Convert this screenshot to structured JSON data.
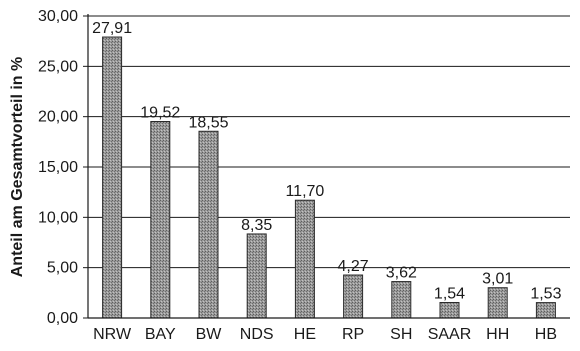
{
  "chart_data": {
    "type": "bar",
    "categories": [
      "NRW",
      "BAY",
      "BW",
      "NDS",
      "HE",
      "RP",
      "SH",
      "SAAR",
      "HH",
      "HB"
    ],
    "values": [
      27.91,
      19.52,
      18.55,
      8.35,
      11.7,
      4.27,
      3.62,
      1.54,
      3.01,
      1.53
    ],
    "value_labels": [
      "27,91",
      "19,52",
      "18,55",
      "8,35",
      "11,70",
      "4,27",
      "3,62",
      "1,54",
      "3,01",
      "1,53"
    ],
    "ylabel": "Anteil am Gesamtvorteil in %",
    "ylim": [
      0,
      30
    ],
    "yticks": [
      0,
      5,
      10,
      15,
      20,
      25,
      30
    ],
    "ytick_labels": [
      "0,00",
      "5,00",
      "10,00",
      "15,00",
      "20,00",
      "25,00",
      "30,00"
    ],
    "grid": true,
    "legend": "none",
    "bar_color": "#8c8c8c"
  }
}
